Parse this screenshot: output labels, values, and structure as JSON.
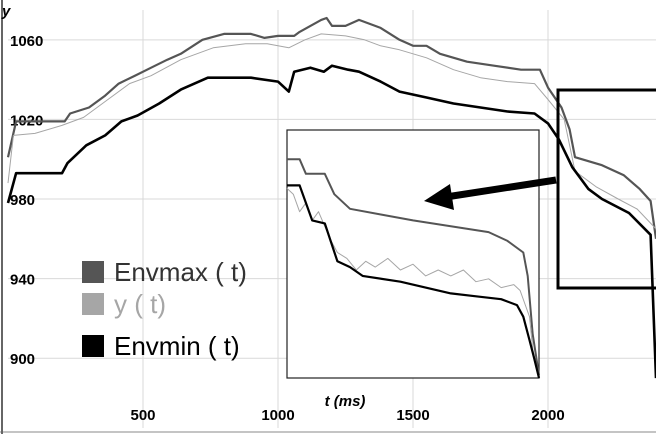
{
  "chart_data": {
    "type": "line",
    "title": "",
    "xlabel": "t (ms)",
    "ylabel": "y",
    "xlim": [
      0,
      2400
    ],
    "ylim": [
      880,
      1075
    ],
    "x_ticks": [
      500,
      1000,
      1500,
      2000
    ],
    "y_ticks": [
      900,
      940,
      980,
      1020,
      1060
    ],
    "grid": true,
    "legend_position": "bottom-left",
    "series": [
      {
        "name": "Envmax ( t)",
        "color": "#555555",
        "points": [
          [
            0,
            1001
          ],
          [
            30,
            1019
          ],
          [
            210,
            1019
          ],
          [
            230,
            1023
          ],
          [
            300,
            1026
          ],
          [
            360,
            1032
          ],
          [
            410,
            1038
          ],
          [
            470,
            1042
          ],
          [
            530,
            1046
          ],
          [
            590,
            1050
          ],
          [
            640,
            1053
          ],
          [
            720,
            1060
          ],
          [
            800,
            1063
          ],
          [
            900,
            1063
          ],
          [
            950,
            1061
          ],
          [
            1000,
            1062
          ],
          [
            1060,
            1062
          ],
          [
            1080,
            1064
          ],
          [
            1120,
            1067
          ],
          [
            1160,
            1070
          ],
          [
            1180,
            1071
          ],
          [
            1200,
            1067
          ],
          [
            1250,
            1067
          ],
          [
            1300,
            1070
          ],
          [
            1380,
            1066
          ],
          [
            1450,
            1060
          ],
          [
            1500,
            1057
          ],
          [
            1550,
            1057
          ],
          [
            1600,
            1053
          ],
          [
            1700,
            1049
          ],
          [
            1800,
            1047
          ],
          [
            1900,
            1045
          ],
          [
            1970,
            1045
          ],
          [
            2000,
            1036
          ],
          [
            2050,
            1026
          ],
          [
            2080,
            1015
          ],
          [
            2100,
            1001
          ],
          [
            2200,
            997
          ],
          [
            2280,
            992
          ],
          [
            2340,
            985
          ],
          [
            2380,
            979
          ],
          [
            2400,
            960
          ]
        ]
      },
      {
        "name": "y ( t)",
        "color": "#a6a6a6",
        "points": [
          [
            0,
            988
          ],
          [
            20,
            1012
          ],
          [
            100,
            1013
          ],
          [
            200,
            1017
          ],
          [
            280,
            1021
          ],
          [
            360,
            1029
          ],
          [
            450,
            1038
          ],
          [
            530,
            1042
          ],
          [
            640,
            1050
          ],
          [
            760,
            1056
          ],
          [
            880,
            1058
          ],
          [
            960,
            1058
          ],
          [
            1040,
            1056
          ],
          [
            1100,
            1060
          ],
          [
            1160,
            1063
          ],
          [
            1250,
            1062
          ],
          [
            1320,
            1060
          ],
          [
            1380,
            1057
          ],
          [
            1450,
            1055
          ],
          [
            1550,
            1051
          ],
          [
            1650,
            1045
          ],
          [
            1750,
            1041
          ],
          [
            1850,
            1039
          ],
          [
            1950,
            1038
          ],
          [
            2000,
            1030
          ],
          [
            2060,
            1020
          ],
          [
            2100,
            994
          ],
          [
            2180,
            986
          ],
          [
            2260,
            980
          ],
          [
            2330,
            975
          ],
          [
            2400,
            965
          ]
        ]
      },
      {
        "name": "Envmin ( t)",
        "color": "#000000",
        "points": [
          [
            0,
            978
          ],
          [
            30,
            993
          ],
          [
            200,
            993
          ],
          [
            220,
            998
          ],
          [
            290,
            1007
          ],
          [
            360,
            1012
          ],
          [
            420,
            1019
          ],
          [
            480,
            1022
          ],
          [
            560,
            1028
          ],
          [
            640,
            1035
          ],
          [
            740,
            1041
          ],
          [
            900,
            1041
          ],
          [
            1000,
            1039
          ],
          [
            1040,
            1034
          ],
          [
            1060,
            1044
          ],
          [
            1120,
            1046
          ],
          [
            1170,
            1044
          ],
          [
            1200,
            1047
          ],
          [
            1260,
            1045
          ],
          [
            1300,
            1044
          ],
          [
            1380,
            1039
          ],
          [
            1450,
            1034
          ],
          [
            1550,
            1031
          ],
          [
            1650,
            1028
          ],
          [
            1750,
            1026
          ],
          [
            1850,
            1024
          ],
          [
            1950,
            1023
          ],
          [
            2000,
            1018
          ],
          [
            2040,
            1010
          ],
          [
            2090,
            996
          ],
          [
            2150,
            985
          ],
          [
            2200,
            980
          ],
          [
            2300,
            973
          ],
          [
            2380,
            962
          ],
          [
            2400,
            890
          ]
        ]
      }
    ],
    "inset": {
      "xlim": [
        2000,
        2400
      ],
      "ylim": [
        945,
        1030
      ],
      "series": [
        {
          "name": "Envmax ( t)",
          "color": "#555555",
          "points": [
            [
              2000,
              1020
            ],
            [
              2020,
              1020
            ],
            [
              2030,
              1015
            ],
            [
              2060,
              1015
            ],
            [
              2075,
              1008
            ],
            [
              2100,
              1003
            ],
            [
              2150,
              1001
            ],
            [
              2200,
              999
            ],
            [
              2260,
              997
            ],
            [
              2320,
              995
            ],
            [
              2350,
              992
            ],
            [
              2375,
              988
            ],
            [
              2382,
              980
            ],
            [
              2390,
              960
            ],
            [
              2400,
              946
            ]
          ]
        },
        {
          "name": "y ( t)",
          "color": "#a6a6a6",
          "points": [
            [
              2000,
              1010
            ],
            [
              2010,
              1008
            ],
            [
              2020,
              1002
            ],
            [
              2030,
              1005
            ],
            [
              2040,
              999
            ],
            [
              2050,
              1002
            ],
            [
              2060,
              997
            ],
            [
              2070,
              992
            ],
            [
              2080,
              988
            ],
            [
              2095,
              986
            ],
            [
              2110,
              982
            ],
            [
              2125,
              985
            ],
            [
              2140,
              983
            ],
            [
              2160,
              986
            ],
            [
              2180,
              982
            ],
            [
              2200,
              984
            ],
            [
              2220,
              980
            ],
            [
              2240,
              982
            ],
            [
              2260,
              980
            ],
            [
              2280,
              982
            ],
            [
              2300,
              978
            ],
            [
              2320,
              979
            ],
            [
              2340,
              976
            ],
            [
              2360,
              977
            ],
            [
              2370,
              975
            ],
            [
              2385,
              966
            ],
            [
              2390,
              955
            ],
            [
              2400,
              945
            ]
          ]
        },
        {
          "name": "Envmin ( t)",
          "color": "#000000",
          "points": [
            [
              2000,
              1011
            ],
            [
              2020,
              1011
            ],
            [
              2040,
              999
            ],
            [
              2060,
              998
            ],
            [
              2080,
              985
            ],
            [
              2100,
              983
            ],
            [
              2120,
              980
            ],
            [
              2180,
              978
            ],
            [
              2220,
              976
            ],
            [
              2260,
              974
            ],
            [
              2300,
              973
            ],
            [
              2340,
              972
            ],
            [
              2365,
              970
            ],
            [
              2375,
              966
            ],
            [
              2385,
              958
            ],
            [
              2392,
              952
            ],
            [
              2400,
              945
            ]
          ]
        }
      ]
    },
    "legend": [
      {
        "label": "Envmax ( t)",
        "color": "#555555",
        "text_color": "#333333"
      },
      {
        "label": "y ( t)",
        "color": "#a6a6a6",
        "text_color": "#a6a6a6"
      },
      {
        "label": "Envmin ( t)",
        "color": "#000000",
        "text_color": "#000000"
      }
    ]
  }
}
